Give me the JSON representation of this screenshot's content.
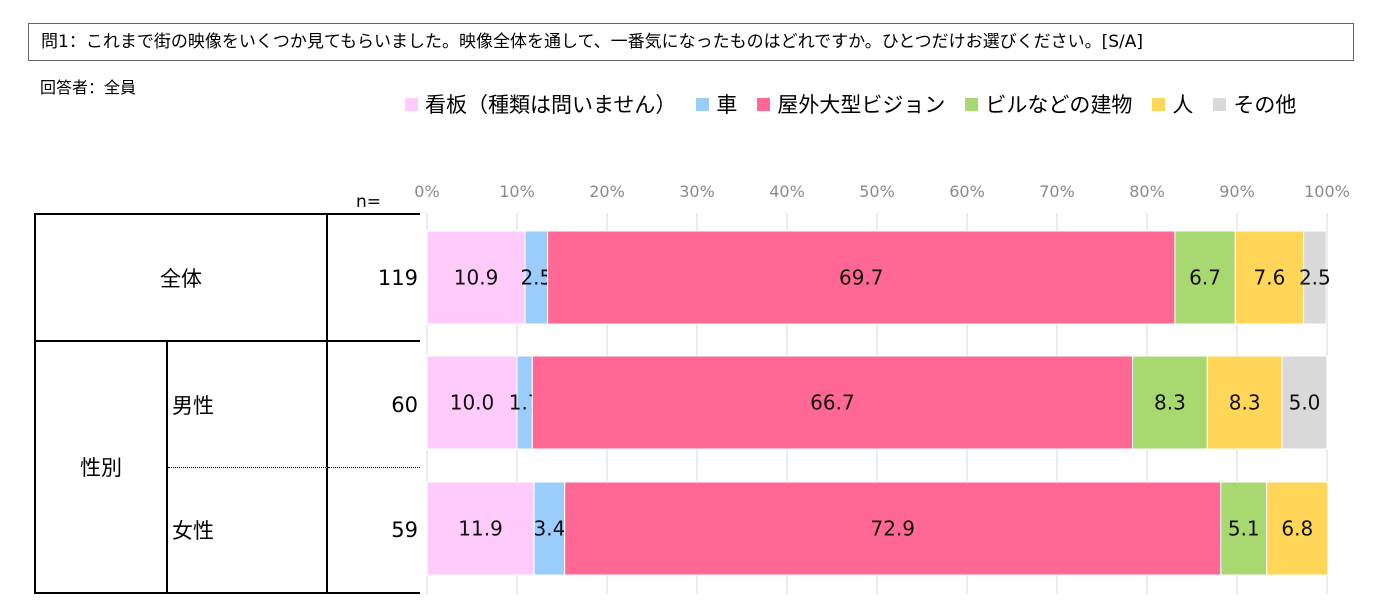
{
  "question": "問1：これまで街の映像をいくつか見てもらいました。映像全体を通して、一番気になったものはどれですか。ひとつだけお選びください。[S/A]",
  "respondent_label": "回答者：全員",
  "n_header": "n=",
  "stub": {
    "group_label": "性別"
  },
  "colors": {
    "signboard": "#fecbfa",
    "car": "#9acdfb",
    "vision": "#ff6794",
    "building": "#a8d970",
    "person": "#ffd658",
    "other": "#d9d9d9"
  },
  "chart_data": {
    "type": "bar",
    "orientation": "horizontal",
    "stacked": true,
    "xlim": [
      0,
      100
    ],
    "x_tick_labels": [
      "0%",
      "10%",
      "20%",
      "30%",
      "40%",
      "50%",
      "60%",
      "70%",
      "80%",
      "90%",
      "100%"
    ],
    "grid": true,
    "legend_position": "top",
    "categories": [
      "全体",
      "男性",
      "女性"
    ],
    "n": [
      "119",
      "60",
      "59"
    ],
    "series": [
      {
        "name": "看板（種類は問いません）",
        "color_key": "signboard",
        "values": [
          10.9,
          10.0,
          11.9
        ],
        "labels": [
          "10.9",
          "10.0",
          "11.9"
        ]
      },
      {
        "name": "車",
        "color_key": "car",
        "values": [
          2.5,
          1.7,
          3.4
        ],
        "labels": [
          "2.5",
          "1.7",
          "3.4"
        ]
      },
      {
        "name": "屋外大型ビジョン",
        "color_key": "vision",
        "values": [
          69.7,
          66.7,
          72.9
        ],
        "labels": [
          "69.7",
          "66.7",
          "72.9"
        ]
      },
      {
        "name": "ビルなどの建物",
        "color_key": "building",
        "values": [
          6.7,
          8.3,
          5.1
        ],
        "labels": [
          "6.7",
          "8.3",
          "5.1"
        ]
      },
      {
        "name": "人",
        "color_key": "person",
        "values": [
          7.6,
          8.3,
          6.8
        ],
        "labels": [
          "7.6",
          "8.3",
          "6.8"
        ]
      },
      {
        "name": "その他",
        "color_key": "other",
        "values": [
          2.5,
          5.0,
          0
        ],
        "labels": [
          "2.5",
          "5.0",
          ""
        ]
      }
    ]
  }
}
